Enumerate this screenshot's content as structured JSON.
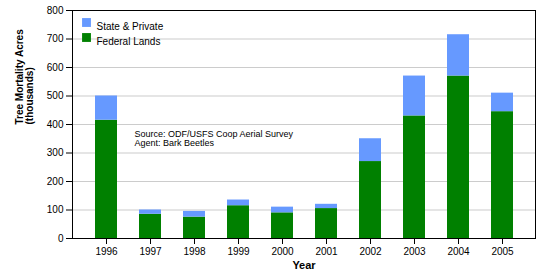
{
  "chart_data": {
    "type": "bar",
    "stacked": true,
    "xlabel": "Year",
    "ylabel": "Tree Mortality Acres\n(thousands)",
    "categories": [
      "1996",
      "1997",
      "1998",
      "1999",
      "2000",
      "2001",
      "2002",
      "2003",
      "2004",
      "2005"
    ],
    "series": [
      {
        "name": "Federal Lands",
        "color": "#008000",
        "values": [
          415,
          85,
          75,
          115,
          90,
          105,
          270,
          430,
          570,
          445
        ]
      },
      {
        "name": "State & Private",
        "color": "#6699ff",
        "values": [
          85,
          15,
          20,
          20,
          20,
          15,
          80,
          140,
          145,
          65
        ]
      }
    ],
    "ylim": [
      0,
      800
    ],
    "yticks": [
      0,
      100,
      200,
      300,
      400,
      500,
      600,
      700,
      800
    ],
    "grid": true,
    "legend": "upper left",
    "annotations": [
      "Source: ODF/USFS Coop Aerial Survey",
      "Agent: Bark Beetles"
    ]
  }
}
